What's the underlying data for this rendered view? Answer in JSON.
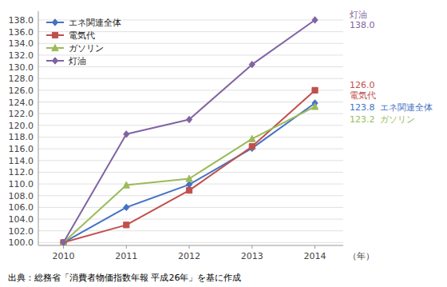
{
  "chart_data": {
    "type": "line",
    "x": [
      2010,
      2011,
      2012,
      2013,
      2014
    ],
    "xlim": [
      2009.6,
      2014.45
    ],
    "xticks": [
      2010,
      2011,
      2012,
      2013,
      2014
    ],
    "x_label": "（年）",
    "ylim": [
      99.5,
      139.5
    ],
    "yticks": [
      {
        "value": 100,
        "label": "100.0"
      },
      {
        "value": 102,
        "label": "102.0"
      },
      {
        "value": 104,
        "label": "104.0"
      },
      {
        "value": 106,
        "label": "106.0"
      },
      {
        "value": 108,
        "label": "108.0"
      },
      {
        "value": 110,
        "label": "110.0"
      },
      {
        "value": 112,
        "label": "112.0"
      },
      {
        "value": 114,
        "label": "114.0"
      },
      {
        "value": 116,
        "label": "116.0"
      },
      {
        "value": 118,
        "label": "118.0"
      },
      {
        "value": 120,
        "label": "120.0"
      },
      {
        "value": 122,
        "label": "122.0"
      },
      {
        "value": 124,
        "label": "124.0"
      },
      {
        "value": 126,
        "label": "126.0"
      },
      {
        "value": 128,
        "label": "128.0"
      },
      {
        "value": 130,
        "label": "130.0"
      },
      {
        "value": 132,
        "label": "132.0"
      },
      {
        "value": 134,
        "label": "134.0"
      },
      {
        "value": 136,
        "label": "136.0"
      },
      {
        "value": 138,
        "label": "138.0"
      }
    ],
    "grid": true,
    "legend": "upper left",
    "series": [
      {
        "name": "エネ関連全体",
        "color": "#4472C4",
        "marker": "diamond",
        "values": [
          100.0,
          106.0,
          109.9,
          116.1,
          123.8
        ]
      },
      {
        "name": "電気代",
        "color": "#C0504D",
        "marker": "square",
        "values": [
          100.0,
          103.0,
          108.9,
          116.4,
          126.0
        ]
      },
      {
        "name": "ガソリン",
        "color": "#9BBB59",
        "marker": "triangle",
        "values": [
          100.0,
          109.8,
          110.9,
          117.7,
          123.2
        ]
      },
      {
        "name": "灯油",
        "color": "#8064A2",
        "marker": "diamond",
        "values": [
          100.0,
          118.5,
          121.0,
          130.4,
          138.0
        ]
      }
    ],
    "annotations": [
      {
        "y": 138.0,
        "texts": [
          "灯油",
          "138.0"
        ],
        "color": "#8064A2"
      },
      {
        "y": 126.0,
        "texts": [
          "126.0",
          "電気代"
        ],
        "color": "#C0504D"
      },
      {
        "y": 123.8,
        "texts": [
          "123.8  エネ関連全体"
        ],
        "color": "#4472C4"
      },
      {
        "y": 123.2,
        "texts": [
          "123.2  ガソリン"
        ],
        "color": "#9BBB59"
      }
    ],
    "source": "出典：総務省「消費者物価指数年報 平成26年」を基に作成"
  }
}
